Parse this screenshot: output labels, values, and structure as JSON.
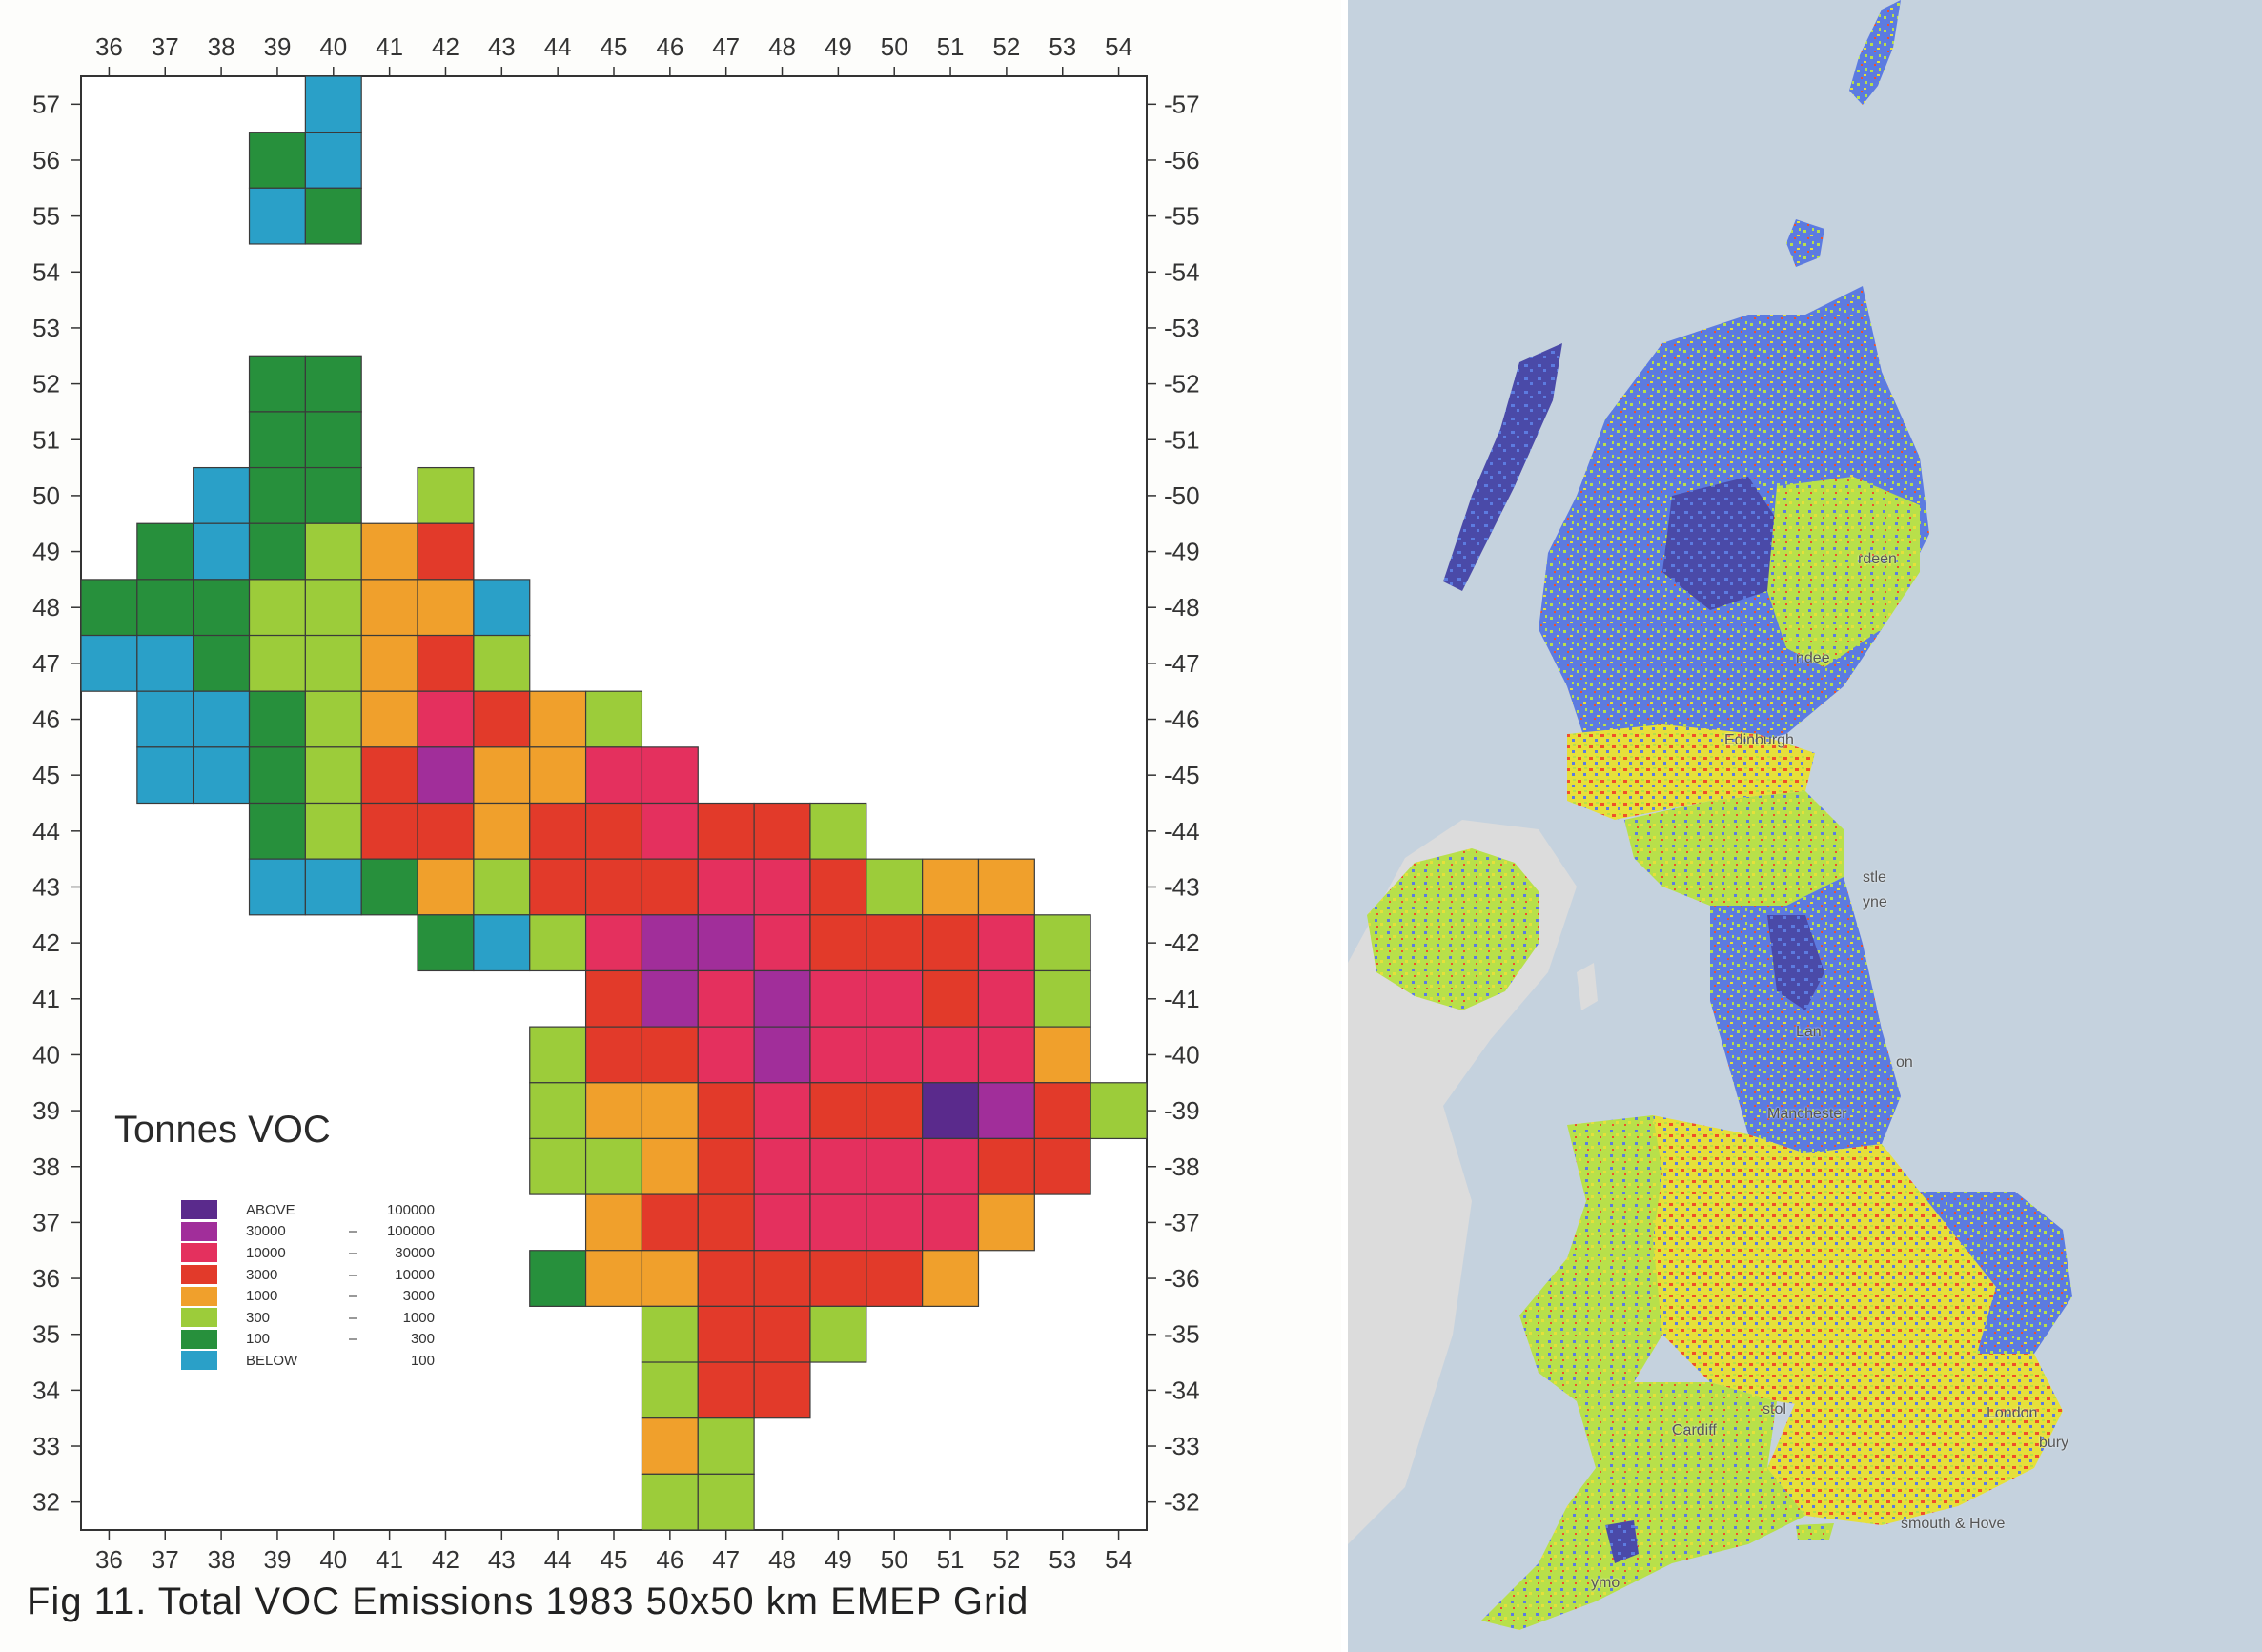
{
  "figure": {
    "caption": "Fig 11.  Total VOC Emissions 1983 50x50 km EMEP Grid",
    "legend_title": "Tonnes VOC"
  },
  "axes": {
    "x_ticks": [
      36,
      37,
      38,
      39,
      40,
      41,
      42,
      43,
      44,
      45,
      46,
      47,
      48,
      49,
      50,
      51,
      52,
      53,
      54
    ],
    "y_ticks": [
      32,
      33,
      34,
      35,
      36,
      37,
      38,
      39,
      40,
      41,
      42,
      43,
      44,
      45,
      46,
      47,
      48,
      49,
      50,
      51,
      52,
      53,
      54,
      55,
      56,
      57
    ]
  },
  "legend": [
    {
      "lo": "ABOVE",
      "hi": "100000",
      "color": "#5a2a8c"
    },
    {
      "lo": "30000",
      "hi": "100000",
      "color": "#a12e9a"
    },
    {
      "lo": "10000",
      "hi": "30000",
      "color": "#e4305e"
    },
    {
      "lo": "3000",
      "hi": "10000",
      "color": "#e23a2a"
    },
    {
      "lo": "1000",
      "hi": "3000",
      "color": "#f0a02c"
    },
    {
      "lo": "300",
      "hi": "1000",
      "color": "#9ccc3a"
    },
    {
      "lo": "100",
      "hi": "300",
      "color": "#27903c"
    },
    {
      "lo": "BELOW",
      "hi": "100",
      "color": "#2aa0c8"
    }
  ],
  "chart_data": {
    "type": "heatmap",
    "x_range": [
      36,
      54
    ],
    "y_range": [
      32,
      57
    ],
    "class_colors": [
      "#5a2a8c",
      "#a12e9a",
      "#e4305e",
      "#e23a2a",
      "#f0a02c",
      "#9ccc3a",
      "#27903c",
      "#2aa0c8"
    ],
    "class_note": "class index 0=ABOVE 100000 ... 7=BELOW 100",
    "rows": [
      {
        "y": 57,
        "cells": [
          [
            40,
            7
          ]
        ]
      },
      {
        "y": 56,
        "cells": [
          [
            39,
            6
          ],
          [
            40,
            7
          ]
        ]
      },
      {
        "y": 55,
        "cells": [
          [
            39,
            7
          ],
          [
            40,
            6
          ]
        ]
      },
      {
        "y": 52,
        "cells": [
          [
            39,
            6
          ],
          [
            40,
            6
          ]
        ]
      },
      {
        "y": 51,
        "cells": [
          [
            39,
            6
          ],
          [
            40,
            6
          ]
        ]
      },
      {
        "y": 50,
        "cells": [
          [
            38,
            7
          ],
          [
            39,
            6
          ],
          [
            40,
            6
          ],
          [
            42,
            5
          ]
        ]
      },
      {
        "y": 49,
        "cells": [
          [
            37,
            6
          ],
          [
            38,
            7
          ],
          [
            39,
            6
          ],
          [
            40,
            5
          ],
          [
            41,
            4
          ],
          [
            42,
            3
          ]
        ]
      },
      {
        "y": 48,
        "cells": [
          [
            36,
            6
          ],
          [
            37,
            6
          ],
          [
            38,
            6
          ],
          [
            39,
            5
          ],
          [
            40,
            5
          ],
          [
            41,
            4
          ],
          [
            42,
            4
          ],
          [
            43,
            7
          ]
        ]
      },
      {
        "y": 47,
        "cells": [
          [
            36,
            7
          ],
          [
            37,
            7
          ],
          [
            38,
            6
          ],
          [
            39,
            5
          ],
          [
            40,
            5
          ],
          [
            41,
            4
          ],
          [
            42,
            3
          ],
          [
            43,
            5
          ]
        ]
      },
      {
        "y": 46,
        "cells": [
          [
            37,
            7
          ],
          [
            38,
            7
          ],
          [
            39,
            6
          ],
          [
            40,
            5
          ],
          [
            41,
            4
          ],
          [
            42,
            2
          ],
          [
            43,
            3
          ],
          [
            44,
            4
          ],
          [
            45,
            5
          ]
        ]
      },
      {
        "y": 45,
        "cells": [
          [
            37,
            7
          ],
          [
            38,
            7
          ],
          [
            39,
            6
          ],
          [
            40,
            5
          ],
          [
            41,
            3
          ],
          [
            42,
            1
          ],
          [
            43,
            4
          ],
          [
            44,
            4
          ],
          [
            45,
            2
          ],
          [
            46,
            2
          ]
        ]
      },
      {
        "y": 44,
        "cells": [
          [
            39,
            6
          ],
          [
            40,
            5
          ],
          [
            41,
            3
          ],
          [
            42,
            3
          ],
          [
            43,
            4
          ],
          [
            44,
            3
          ],
          [
            45,
            3
          ],
          [
            46,
            2
          ],
          [
            47,
            3
          ],
          [
            48,
            3
          ],
          [
            49,
            5
          ]
        ]
      },
      {
        "y": 43,
        "cells": [
          [
            39,
            7
          ],
          [
            40,
            7
          ],
          [
            41,
            6
          ],
          [
            42,
            4
          ],
          [
            43,
            5
          ],
          [
            44,
            3
          ],
          [
            45,
            3
          ],
          [
            46,
            3
          ],
          [
            47,
            2
          ],
          [
            48,
            2
          ],
          [
            49,
            3
          ],
          [
            50,
            5
          ],
          [
            51,
            4
          ],
          [
            52,
            4
          ]
        ]
      },
      {
        "y": 42,
        "cells": [
          [
            42,
            6
          ],
          [
            43,
            7
          ],
          [
            44,
            5
          ],
          [
            45,
            2
          ],
          [
            46,
            1
          ],
          [
            47,
            1
          ],
          [
            48,
            2
          ],
          [
            49,
            3
          ],
          [
            50,
            3
          ],
          [
            51,
            3
          ],
          [
            52,
            2
          ],
          [
            53,
            5
          ]
        ]
      },
      {
        "y": 41,
        "cells": [
          [
            45,
            3
          ],
          [
            46,
            1
          ],
          [
            47,
            2
          ],
          [
            48,
            1
          ],
          [
            49,
            2
          ],
          [
            50,
            2
          ],
          [
            51,
            3
          ],
          [
            52,
            2
          ],
          [
            53,
            5
          ]
        ]
      },
      {
        "y": 40,
        "cells": [
          [
            44,
            5
          ],
          [
            45,
            3
          ],
          [
            46,
            3
          ],
          [
            47,
            2
          ],
          [
            48,
            1
          ],
          [
            49,
            2
          ],
          [
            50,
            2
          ],
          [
            51,
            2
          ],
          [
            52,
            2
          ],
          [
            53,
            4
          ]
        ]
      },
      {
        "y": 39,
        "cells": [
          [
            44,
            5
          ],
          [
            45,
            4
          ],
          [
            46,
            4
          ],
          [
            47,
            3
          ],
          [
            48,
            2
          ],
          [
            49,
            3
          ],
          [
            50,
            3
          ],
          [
            51,
            0
          ],
          [
            52,
            1
          ],
          [
            53,
            3
          ],
          [
            54,
            5
          ]
        ]
      },
      {
        "y": 38,
        "cells": [
          [
            44,
            5
          ],
          [
            45,
            5
          ],
          [
            46,
            4
          ],
          [
            47,
            3
          ],
          [
            48,
            2
          ],
          [
            49,
            2
          ],
          [
            50,
            2
          ],
          [
            51,
            2
          ],
          [
            52,
            3
          ],
          [
            53,
            3
          ]
        ]
      },
      {
        "y": 37,
        "cells": [
          [
            45,
            4
          ],
          [
            46,
            3
          ],
          [
            47,
            3
          ],
          [
            48,
            2
          ],
          [
            49,
            2
          ],
          [
            50,
            2
          ],
          [
            51,
            2
          ],
          [
            52,
            4
          ]
        ]
      },
      {
        "y": 36,
        "cells": [
          [
            44,
            6
          ],
          [
            45,
            4
          ],
          [
            46,
            4
          ],
          [
            47,
            3
          ],
          [
            48,
            3
          ],
          [
            49,
            3
          ],
          [
            50,
            3
          ],
          [
            51,
            4
          ]
        ]
      },
      {
        "y": 35,
        "cells": [
          [
            46,
            5
          ],
          [
            47,
            3
          ],
          [
            48,
            3
          ],
          [
            49,
            5
          ]
        ]
      },
      {
        "y": 34,
        "cells": [
          [
            46,
            5
          ],
          [
            47,
            3
          ],
          [
            48,
            3
          ]
        ]
      },
      {
        "y": 33,
        "cells": [
          [
            46,
            4
          ],
          [
            47,
            5
          ]
        ]
      },
      {
        "y": 32,
        "cells": [
          [
            46,
            5
          ],
          [
            47,
            5
          ]
        ]
      }
    ]
  },
  "map": {
    "background_color": "#c5d2de",
    "cities": [
      {
        "name": "Aberdeen",
        "shown": "rdeen"
      },
      {
        "name": "Dundee",
        "shown": "ndee"
      },
      {
        "name": "Edinburgh",
        "shown": "Edinburgh"
      },
      {
        "name": "Newcastle upon Tyne",
        "shown": "stle"
      },
      {
        "name": "Tyne",
        "shown": "yne"
      },
      {
        "name": "Lancaster",
        "shown": "Lan"
      },
      {
        "name": "Manchester",
        "shown": "Manchester"
      },
      {
        "name": "Kingston upon Hull",
        "shown": "on"
      },
      {
        "name": "Cardiff",
        "shown": "Cardiff"
      },
      {
        "name": "Bristol",
        "shown": "stol"
      },
      {
        "name": "London",
        "shown": "London"
      },
      {
        "name": "Canterbury",
        "shown": "bury"
      },
      {
        "name": "Brighton & Hove",
        "shown": "smouth & Hove"
      },
      {
        "name": "Plymouth",
        "shown": "ymo"
      }
    ],
    "region_colors": {
      "upland": "#5c7be0",
      "highland": "#4a4aa8",
      "rural": "#b8e04a",
      "mixed": "#e6e03a",
      "urban": "#f0502a",
      "ireland": "#dcdcdc"
    }
  }
}
